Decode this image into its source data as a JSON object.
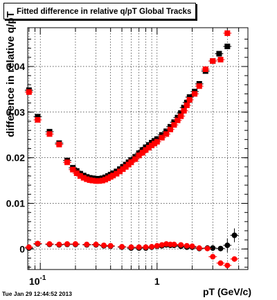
{
  "header": {
    "title": "Fitted difference in relative q/pT  Global Tracks",
    "timestamp": "Tue Jan 29 12:44:52 2013"
  },
  "axes": {
    "y_label_inner": "difference in relative q/pT",
    "x_label": "pT (GeV/c)",
    "x_ticks": [
      {
        "value": 0.1,
        "label": "10",
        "exp": "-1"
      },
      {
        "value": 1,
        "label": "1",
        "exp": ""
      }
    ],
    "y_ticks": [
      {
        "value": 0,
        "label": "0"
      },
      {
        "value": 0.01,
        "label": "0.01"
      },
      {
        "value": 0.02,
        "label": "0.02"
      },
      {
        "value": 0.03,
        "label": "0.03"
      },
      {
        "value": 0.04,
        "label": "0.04"
      }
    ]
  },
  "colors": {
    "black_series": "#000000",
    "red_series": "#ff0000",
    "grid": "#000000",
    "background": "#ffffff"
  },
  "chart_data": {
    "type": "scatter",
    "x_scale": "log",
    "xlim": [
      0.078,
      6.0
    ],
    "ylim": [
      -0.0045,
      0.0485
    ],
    "grid": true,
    "series": [
      {
        "marker": "square",
        "color": "#000000",
        "points": [
          [
            0.08,
            0.0348
          ],
          [
            0.095,
            0.029
          ],
          [
            0.12,
            0.0257
          ],
          [
            0.145,
            0.0232
          ],
          [
            0.17,
            0.0194
          ],
          [
            0.19,
            0.0178
          ],
          [
            0.205,
            0.0171
          ],
          [
            0.22,
            0.0165
          ],
          [
            0.235,
            0.0161
          ],
          [
            0.25,
            0.0158
          ],
          [
            0.265,
            0.0156
          ],
          [
            0.28,
            0.0155
          ],
          [
            0.3,
            0.0154
          ],
          [
            0.32,
            0.0154
          ],
          [
            0.34,
            0.0155
          ],
          [
            0.36,
            0.0157
          ],
          [
            0.38,
            0.016
          ],
          [
            0.4,
            0.0163
          ],
          [
            0.42,
            0.0166
          ],
          [
            0.45,
            0.017
          ],
          [
            0.48,
            0.0175
          ],
          [
            0.51,
            0.018
          ],
          [
            0.54,
            0.0185
          ],
          [
            0.57,
            0.019
          ],
          [
            0.6,
            0.0195
          ],
          [
            0.65,
            0.0202
          ],
          [
            0.7,
            0.021
          ],
          [
            0.75,
            0.0217
          ],
          [
            0.8,
            0.0223
          ],
          [
            0.85,
            0.0228
          ],
          [
            0.9,
            0.0233
          ],
          [
            0.95,
            0.0237
          ],
          [
            1.0,
            0.0241
          ],
          [
            1.1,
            0.025
          ],
          [
            1.2,
            0.0258
          ],
          [
            1.3,
            0.0268
          ],
          [
            1.4,
            0.0278
          ],
          [
            1.5,
            0.0288
          ],
          [
            1.6,
            0.0298
          ],
          [
            1.7,
            0.031
          ],
          [
            1.8,
            0.0321
          ],
          [
            1.9,
            0.0333
          ],
          [
            2.1,
            0.0345
          ],
          [
            2.3,
            0.0362
          ],
          [
            2.6,
            0.039
          ],
          [
            3.0,
            0.0412
          ],
          [
            3.4,
            0.0428
          ],
          [
            4.0,
            0.0444
          ]
        ]
      },
      {
        "marker": "square",
        "color": "#ff0000",
        "points": [
          [
            0.08,
            0.0344
          ],
          [
            0.095,
            0.0283
          ],
          [
            0.12,
            0.0252
          ],
          [
            0.145,
            0.0229
          ],
          [
            0.17,
            0.019
          ],
          [
            0.19,
            0.0174
          ],
          [
            0.205,
            0.0166
          ],
          [
            0.22,
            0.016
          ],
          [
            0.235,
            0.0156
          ],
          [
            0.25,
            0.0153
          ],
          [
            0.265,
            0.0151
          ],
          [
            0.28,
            0.015
          ],
          [
            0.3,
            0.0149
          ],
          [
            0.32,
            0.0149
          ],
          [
            0.34,
            0.015
          ],
          [
            0.36,
            0.0152
          ],
          [
            0.38,
            0.0155
          ],
          [
            0.4,
            0.0158
          ],
          [
            0.42,
            0.0161
          ],
          [
            0.45,
            0.0165
          ],
          [
            0.48,
            0.017
          ],
          [
            0.51,
            0.0175
          ],
          [
            0.54,
            0.018
          ],
          [
            0.57,
            0.0185
          ],
          [
            0.6,
            0.019
          ],
          [
            0.65,
            0.0197
          ],
          [
            0.7,
            0.0205
          ],
          [
            0.75,
            0.0211
          ],
          [
            0.8,
            0.0217
          ],
          [
            0.85,
            0.0222
          ],
          [
            0.9,
            0.0227
          ],
          [
            0.95,
            0.0231
          ],
          [
            1.0,
            0.0235
          ],
          [
            1.1,
            0.0244
          ],
          [
            1.2,
            0.0252
          ],
          [
            1.3,
            0.0262
          ],
          [
            1.4,
            0.0272
          ],
          [
            1.5,
            0.0282
          ],
          [
            1.6,
            0.0291
          ],
          [
            1.7,
            0.0303
          ],
          [
            1.8,
            0.0315
          ],
          [
            1.9,
            0.0327
          ],
          [
            2.1,
            0.034
          ],
          [
            2.3,
            0.0357
          ],
          [
            2.6,
            0.0394
          ],
          [
            3.0,
            0.0412
          ],
          [
            3.5,
            0.0415
          ],
          [
            4.0,
            0.0473
          ]
        ]
      },
      {
        "marker": "circle",
        "color": "#000000",
        "points": [
          [
            0.08,
            0.0002
          ],
          [
            0.095,
            0.0011
          ],
          [
            0.12,
            0.001
          ],
          [
            0.145,
            0.0009
          ],
          [
            0.17,
            0.001
          ],
          [
            0.2,
            0.001
          ],
          [
            0.25,
            0.0009
          ],
          [
            0.3,
            0.0009
          ],
          [
            0.35,
            0.0007
          ],
          [
            0.4,
            0.0006
          ],
          [
            0.5,
            0.0004
          ],
          [
            0.6,
            0.0002
          ],
          [
            0.7,
            0.0002
          ],
          [
            0.8,
            0.0002
          ],
          [
            0.9,
            0.0004
          ],
          [
            1.0,
            0.0006
          ],
          [
            1.1,
            0.0007
          ],
          [
            1.2,
            0.0009
          ],
          [
            1.3,
            0.0008
          ],
          [
            1.4,
            0.0008
          ],
          [
            1.6,
            0.0006
          ],
          [
            1.8,
            0.0004
          ],
          [
            2.0,
            0.0004
          ],
          [
            2.3,
            0.0001
          ],
          [
            2.7,
            0.0002
          ],
          [
            3.0,
            0.0002
          ],
          [
            3.5,
            0.0001
          ],
          [
            4.0,
            0.0008
          ],
          [
            4.6,
            0.003
          ]
        ]
      },
      {
        "marker": "circle",
        "color": "#ff0000",
        "points": [
          [
            0.08,
            0.0004
          ],
          [
            0.095,
            0.0012
          ],
          [
            0.12,
            0.0011
          ],
          [
            0.145,
            0.001
          ],
          [
            0.17,
            0.0011
          ],
          [
            0.2,
            0.0011
          ],
          [
            0.25,
            0.001
          ],
          [
            0.3,
            0.001
          ],
          [
            0.35,
            0.0008
          ],
          [
            0.4,
            0.0007
          ],
          [
            0.5,
            0.0005
          ],
          [
            0.6,
            0.0004
          ],
          [
            0.7,
            0.0004
          ],
          [
            0.8,
            0.0004
          ],
          [
            0.9,
            0.0005
          ],
          [
            1.0,
            0.0007
          ],
          [
            1.1,
            0.0009
          ],
          [
            1.2,
            0.0011
          ],
          [
            1.3,
            0.001
          ],
          [
            1.4,
            0.001
          ],
          [
            1.6,
            0.0009
          ],
          [
            1.8,
            0.0007
          ],
          [
            2.0,
            0.0006
          ],
          [
            2.3,
            0.0002
          ],
          [
            2.7,
            0.0001
          ],
          [
            3.0,
            -0.0017
          ],
          [
            3.5,
            -0.0031
          ],
          [
            4.0,
            -0.0036
          ],
          [
            4.6,
            -0.0022
          ]
        ]
      }
    ]
  }
}
